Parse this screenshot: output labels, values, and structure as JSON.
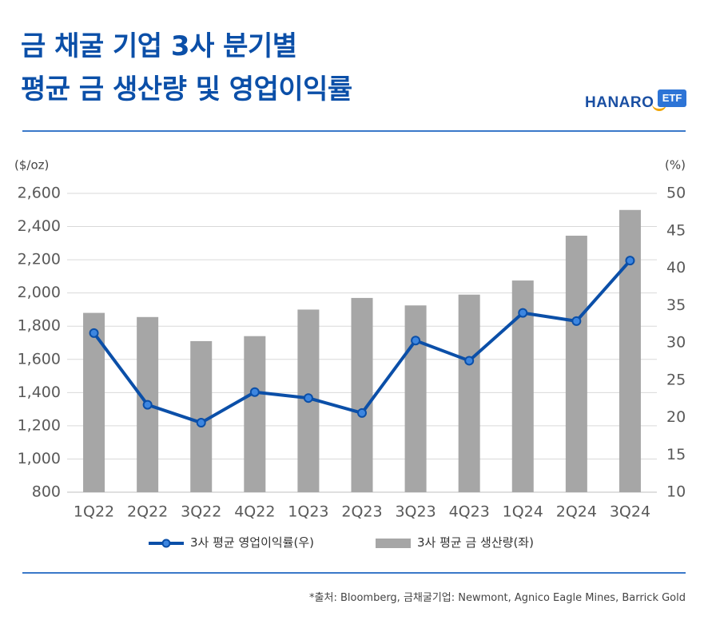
{
  "header": {
    "title_line1": "금 채굴 기업 3사 분기별",
    "title_line2": "평균 금 생산량 및 영업이익률",
    "logo_text": "HANARO",
    "logo_badge": "ETF"
  },
  "footnote": "*출처: Bloomberg, 금채굴기업: Newmont, Agnico Eagle Mines, Barrick Gold",
  "colors": {
    "title": "#0b4fa8",
    "bar": "#a6a6a6",
    "line": "#0b4fa8",
    "marker_fill": "#3d86e0",
    "grid": "#d9d9d9",
    "rule": "#3a79c9"
  },
  "chart_data": {
    "type": "bar+line",
    "categories": [
      "1Q22",
      "2Q22",
      "3Q22",
      "4Q22",
      "1Q23",
      "2Q23",
      "3Q23",
      "4Q23",
      "1Q24",
      "2Q24",
      "3Q24"
    ],
    "left_axis": {
      "unit": "($/oz)",
      "ylim": [
        800,
        2600
      ],
      "ticks": [
        "800",
        "1,000",
        "1,200",
        "1,400",
        "1,600",
        "1,800",
        "2,000",
        "2,200",
        "2,400",
        "2,600"
      ]
    },
    "right_axis": {
      "unit": "(%)",
      "ylim": [
        10,
        50
      ],
      "ticks": [
        "10",
        "15",
        "20",
        "25",
        "30",
        "35",
        "40",
        "45",
        "50"
      ]
    },
    "series": [
      {
        "name": "3사 평균 금 생산량(좌)",
        "type": "bar",
        "axis": "left",
        "values": [
          1880,
          1855,
          1710,
          1740,
          1900,
          1970,
          1925,
          1990,
          2075,
          2345,
          2500
        ]
      },
      {
        "name": "3사 평균 영업이익률(우)",
        "type": "line",
        "axis": "right",
        "values": [
          31.3,
          21.7,
          19.3,
          23.4,
          22.6,
          20.6,
          30.3,
          27.6,
          34.0,
          32.9,
          41.0
        ]
      }
    ],
    "grid": true,
    "legend_position": "bottom"
  }
}
